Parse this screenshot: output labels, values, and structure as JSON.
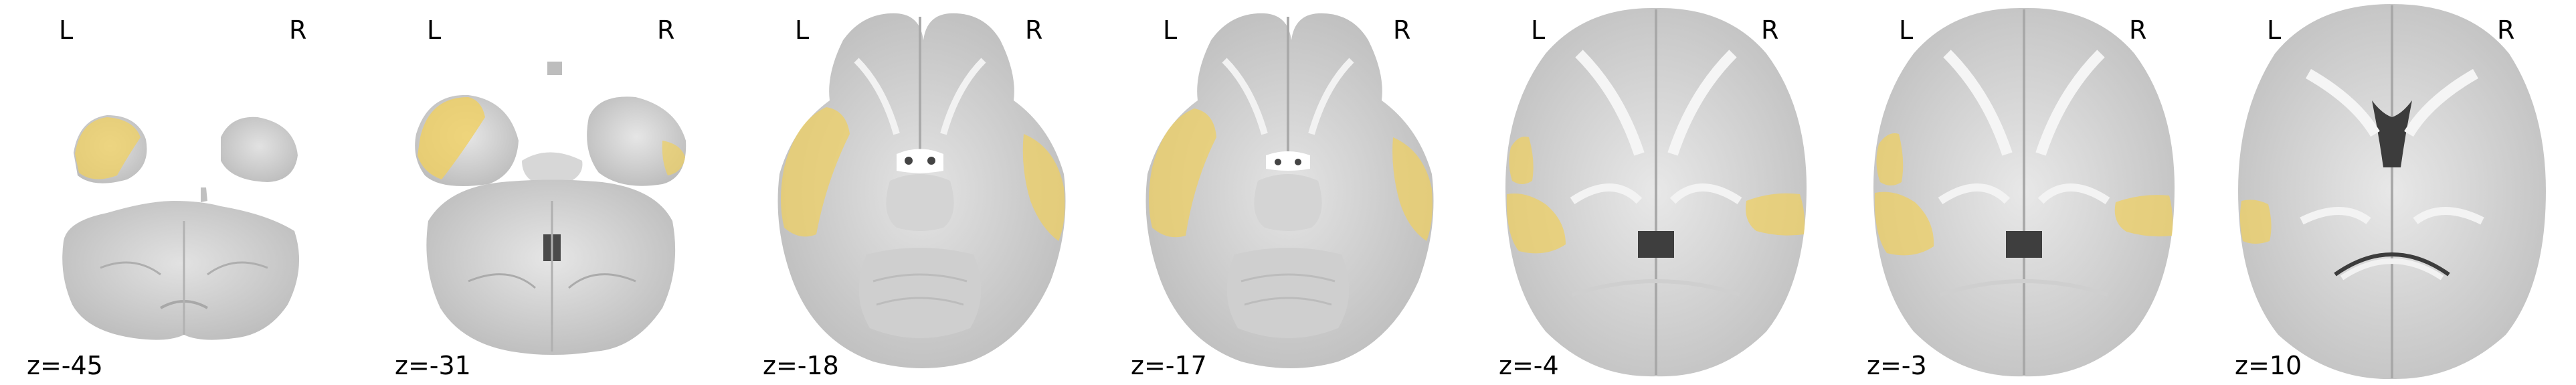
{
  "figure": {
    "view": "axial",
    "background": "#ffffff",
    "overlay_color": "#f0d060",
    "orientation_labels": {
      "left": "L",
      "right": "R"
    },
    "slices": [
      {
        "z_label": "z=-45"
      },
      {
        "z_label": "z=-31"
      },
      {
        "z_label": "z=-18"
      },
      {
        "z_label": "z=-17"
      },
      {
        "z_label": "z=-4"
      },
      {
        "z_label": "z=-3"
      },
      {
        "z_label": "z=10"
      }
    ]
  }
}
